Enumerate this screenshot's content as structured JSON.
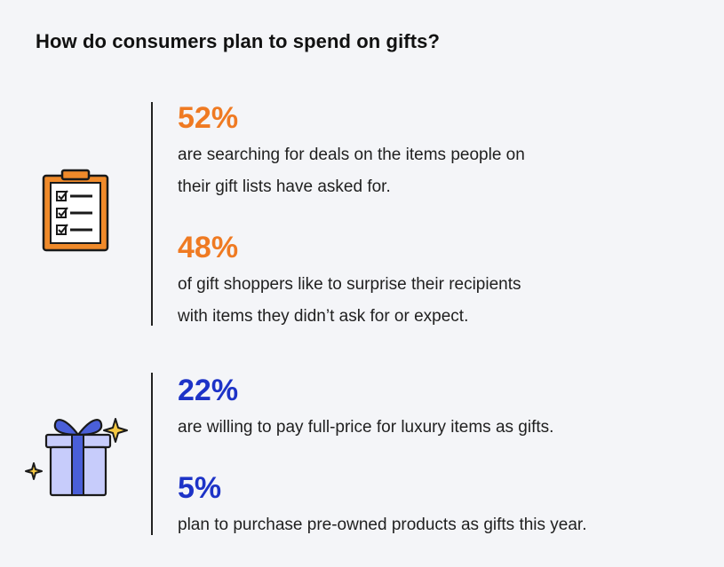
{
  "title": "How do consumers plan to spend on gifts?",
  "colors": {
    "orange": "#ef7a22",
    "blue": "#1d33c7"
  },
  "sections": [
    {
      "icon": "clipboard-checklist-icon",
      "stats": [
        {
          "value": "52%",
          "lines": [
            "are searching for deals on the items people on",
            "their gift lists have asked for."
          ]
        },
        {
          "value": "48%",
          "lines": [
            "of gift shoppers like to surprise their recipients",
            "with items they didn’t ask for or expect."
          ]
        }
      ]
    },
    {
      "icon": "gift-box-icon",
      "stats": [
        {
          "value": "22%",
          "lines": [
            "are willing to pay full-price for luxury items as gifts."
          ]
        },
        {
          "value": "5%",
          "lines": [
            "plan to purchase pre-owned products as gifts this year."
          ]
        }
      ]
    }
  ]
}
